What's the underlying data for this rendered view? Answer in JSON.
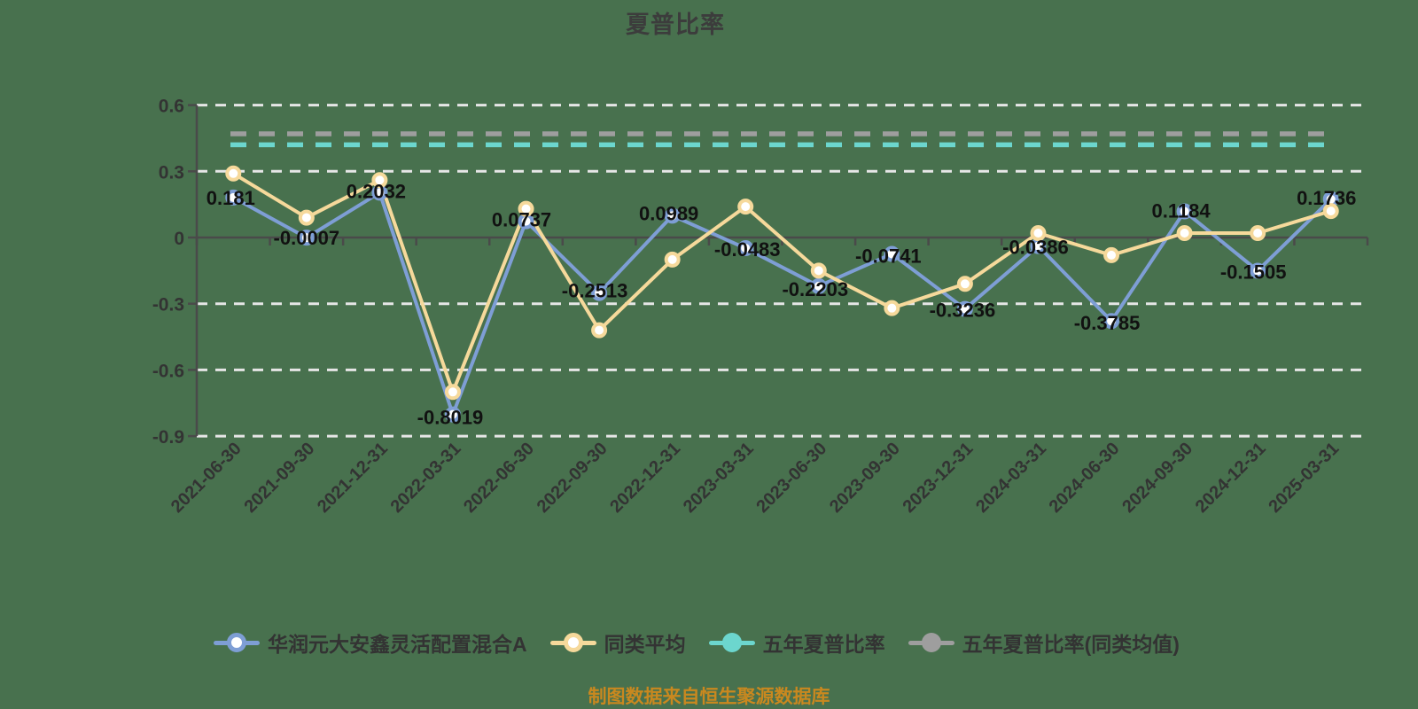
{
  "title": {
    "text": "夏普比率",
    "color": "#3C3C3C"
  },
  "footer": {
    "text": "制图数据来自恒生聚源数据库",
    "color": "#C9881F"
  },
  "colors": {
    "background": "#48714E",
    "fund_line": "#7E9ED5",
    "peer_line": "#F6D99B",
    "five_year_line": "#6CD6CE",
    "five_year_peer_line": "#9E9E9E",
    "gridline": "#E6E6E6",
    "axis": "#4A4A4A",
    "tick_text": "#333333",
    "value_label": "#111111"
  },
  "legend": {
    "position": "bottom",
    "items": [
      {
        "label": "华润元大安鑫灵活配置混合A",
        "color": "#7E9ED5",
        "marker": "ring"
      },
      {
        "label": "同类平均",
        "color": "#F6D99B",
        "marker": "ring"
      },
      {
        "label": "五年夏普比率",
        "color": "#6CD6CE",
        "marker": "dot"
      },
      {
        "label": "五年夏普比率(同类均值)",
        "color": "#9E9E9E",
        "marker": "dot"
      }
    ]
  },
  "chart_data": {
    "type": "line",
    "title": "夏普比率",
    "categories": [
      "2021-06-30",
      "2021-09-30",
      "2021-12-31",
      "2022-03-31",
      "2022-06-30",
      "2022-09-30",
      "2022-12-31",
      "2023-03-31",
      "2023-06-30",
      "2023-09-30",
      "2023-12-31",
      "2024-03-31",
      "2024-06-30",
      "2024-09-30",
      "2024-12-31",
      "2025-03-31"
    ],
    "series": [
      {
        "name": "华润元大安鑫灵活配置混合A",
        "color": "#7E9ED5",
        "marker": "ring",
        "values": [
          0.181,
          -0.0007,
          0.2032,
          -0.8019,
          0.0737,
          -0.2513,
          0.0989,
          -0.0483,
          -0.2203,
          -0.0741,
          -0.3236,
          -0.0386,
          -0.3785,
          0.1184,
          -0.1505,
          0.1736
        ],
        "labels": [
          "0.181",
          "-0.0007",
          "0.2032",
          "-0.8019",
          "0.0737",
          "-0.2513",
          "0.0989",
          "-0.0483",
          "-0.2203",
          "-0.0741",
          "-0.3236",
          "-0.0386",
          "-0.3785",
          "0.1184",
          "-0.1505",
          "0.1736"
        ],
        "label_offsets": [
          [
            -3,
            0
          ],
          [
            0,
            0
          ],
          [
            -4,
            -2
          ],
          [
            -3,
            3
          ],
          [
            -5,
            -2
          ],
          [
            -5,
            -3
          ],
          [
            -4,
            -3
          ],
          [
            2,
            1
          ],
          [
            -4,
            3
          ],
          [
            -4,
            2
          ],
          [
            -3,
            1
          ],
          [
            -3,
            1
          ],
          [
            -5,
            2
          ],
          [
            -4,
            -1
          ],
          [
            -5,
            1
          ],
          [
            -5,
            -2
          ]
        ]
      },
      {
        "name": "同类平均",
        "color": "#F6D99B",
        "marker": "ring",
        "values": [
          0.29,
          0.09,
          0.26,
          -0.7,
          0.13,
          -0.42,
          -0.1,
          0.14,
          -0.15,
          -0.32,
          -0.21,
          0.02,
          -0.08,
          0.02,
          0.02,
          0.12
        ]
      },
      {
        "name": "五年夏普比率",
        "color": "#6CD6CE",
        "marker": "dot",
        "constant": 0.42
      },
      {
        "name": "五年夏普比率(同类均值)",
        "color": "#9E9E9E",
        "marker": "dot",
        "constant": 0.47
      }
    ],
    "y_axis": {
      "ticks": [
        0.6,
        0.3,
        0,
        -0.3,
        -0.6,
        -0.9
      ],
      "tick_labels": [
        "0.6",
        "0.3",
        "0",
        "-0.3",
        "-0.6",
        "-0.9"
      ],
      "ylim": [
        -0.9,
        0.6
      ]
    },
    "grid": {
      "dashed_gridlines": [
        0.6,
        0.3,
        -0.3,
        -0.6,
        -0.9
      ],
      "zero_line": true
    },
    "legend_position": "bottom",
    "x_label_rotation": 45
  }
}
